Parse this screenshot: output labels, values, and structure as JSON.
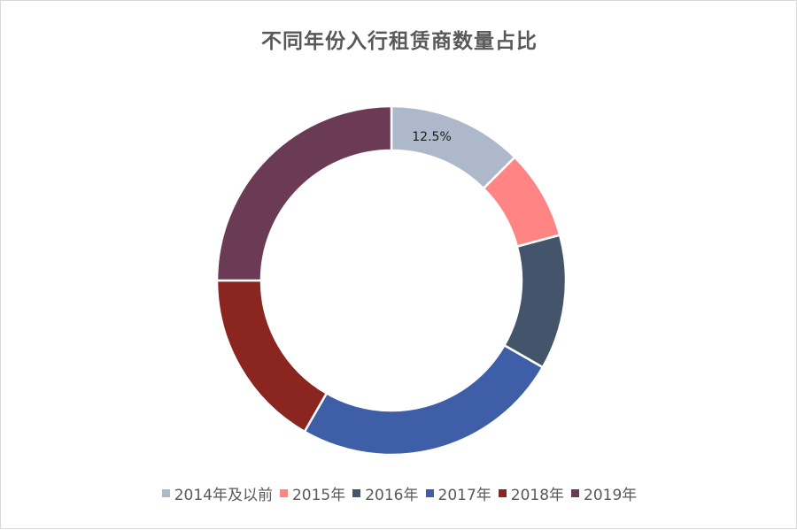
{
  "chart_data": {
    "type": "pie",
    "variant": "donut",
    "title": "不同年份入行租赁商数量占比",
    "categories": [
      "2014年及以前",
      "2015年",
      "2016年",
      "2017年",
      "2018年",
      "2019年"
    ],
    "values": [
      12.5,
      8.3,
      12.5,
      25.0,
      16.7,
      25.0
    ],
    "colors": [
      "#adb9ca",
      "#ff8585",
      "#44546a",
      "#3e5fa8",
      "#8b2520",
      "#6b3a54"
    ],
    "data_labels": [
      {
        "category": "2014年及以前",
        "text": "12.5%"
      }
    ],
    "legend_position": "bottom"
  }
}
